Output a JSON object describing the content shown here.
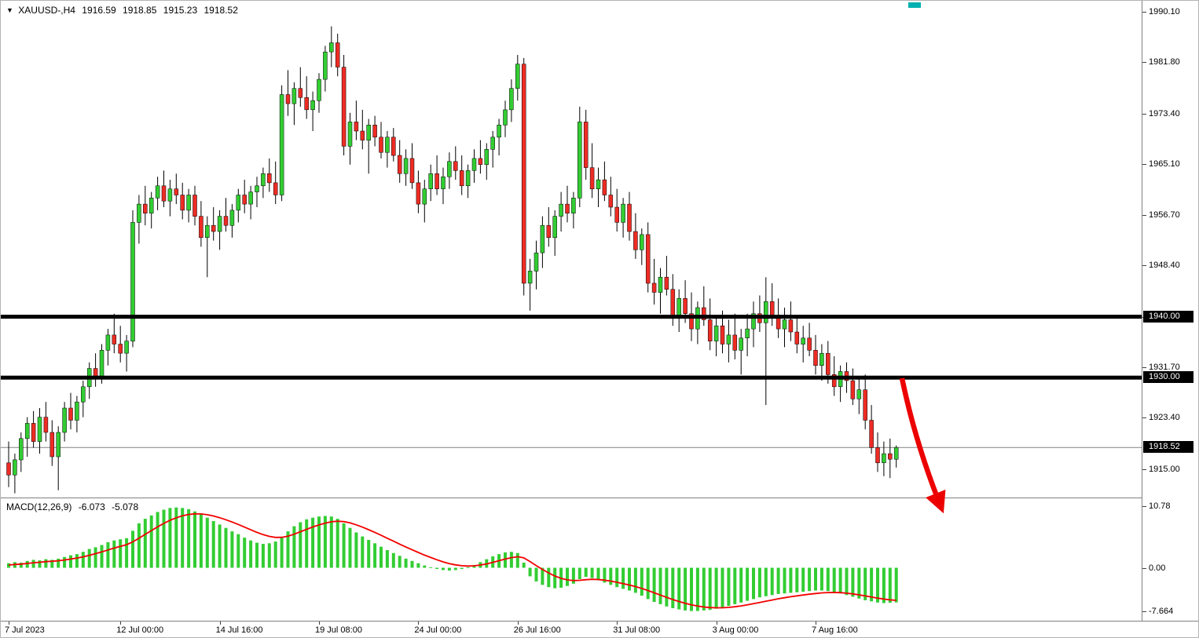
{
  "title_bar": {
    "marker": "▼",
    "symbol": "XAUUSD-,H4",
    "open": "1916.59",
    "high": "1918.85",
    "low": "1915.23",
    "close": "1918.52"
  },
  "indicator_bar": {
    "name": "MACD(12,26,9)",
    "main_value": "-6.073",
    "signal_value": "-5.078"
  },
  "colors": {
    "up": "#32cd32",
    "down": "#ee2c24",
    "wick": "#000000",
    "histogram": "#32cd32",
    "signal": "#f30000",
    "level": "#000000",
    "bid_line": "#808080",
    "frame": "#808080",
    "arrow": "#ec0000",
    "shift_marker": "#00b0b0"
  },
  "annotations": {
    "trend_arrow": {
      "color": "#ec0000",
      "from": [
        1147,
        481
      ],
      "to": [
        1197,
        646
      ]
    }
  },
  "chart_data": [
    {
      "type": "candlestick",
      "symbol": "XAUUSD-",
      "timeframe": "H4",
      "grid": false,
      "ylim": [
        1910.3,
        1991.9
      ],
      "y_ticks": [
        "1990.10",
        "1981.80",
        "1973.40",
        "1965.10",
        "1956.70",
        "1948.40",
        "1940.00",
        "1931.70",
        "1923.40",
        "1915.00"
      ],
      "price_badges": [
        {
          "text": "1940.00",
          "price": 1940.0
        },
        {
          "text": "1930.00",
          "price": 1930.0
        },
        {
          "text": "1918.52",
          "price": 1918.52
        }
      ],
      "levels": [
        {
          "price": 1940.0,
          "thickness": 5
        },
        {
          "price": 1930.0,
          "thickness": 5
        }
      ],
      "current_price": 1918.52,
      "x_ticks": [
        {
          "label": "7 Jul 2023",
          "bar": 0
        },
        {
          "label": "12 Jul 00:00",
          "bar": 18
        },
        {
          "label": "14 Jul 16:00",
          "bar": 34
        },
        {
          "label": "19 Jul 08:00",
          "bar": 50
        },
        {
          "label": "24 Jul 00:00",
          "bar": 66
        },
        {
          "label": "26 Jul 16:00",
          "bar": 82
        },
        {
          "label": "31 Jul 08:00",
          "bar": 98
        },
        {
          "label": "3 Aug 00:00",
          "bar": 114
        },
        {
          "label": "7 Aug 16:00",
          "bar": 130
        }
      ],
      "ohlc": [
        [
          1916,
          1919.5,
          1912,
          1914
        ],
        [
          1914,
          1917.5,
          1911,
          1916.5
        ],
        [
          1916.5,
          1921,
          1914.5,
          1920
        ],
        [
          1920,
          1923.5,
          1917,
          1922.5
        ],
        [
          1922.5,
          1924.5,
          1918.5,
          1919.5
        ],
        [
          1919.5,
          1925,
          1917.5,
          1923.5
        ],
        [
          1923.5,
          1926,
          1919.5,
          1921
        ],
        [
          1921,
          1923,
          1915.5,
          1917
        ],
        [
          1917,
          1922,
          1911.5,
          1921
        ],
        [
          1921,
          1926,
          1919.5,
          1925
        ],
        [
          1925,
          1927.5,
          1921.5,
          1923
        ],
        [
          1923,
          1927,
          1921,
          1926
        ],
        [
          1926,
          1929.5,
          1923.5,
          1928.5
        ],
        [
          1928.5,
          1932.5,
          1926.5,
          1931.5
        ],
        [
          1931.5,
          1934,
          1928.5,
          1930
        ],
        [
          1930,
          1935.5,
          1929,
          1934.5
        ],
        [
          1934.5,
          1938,
          1932,
          1937
        ],
        [
          1937,
          1940.5,
          1934,
          1935.5
        ],
        [
          1935.5,
          1938.5,
          1932.5,
          1934
        ],
        [
          1934,
          1937,
          1931,
          1936
        ],
        [
          1936,
          1957.5,
          1935,
          1955.5
        ],
        [
          1955.5,
          1960,
          1952,
          1958.5
        ],
        [
          1958.5,
          1961.5,
          1955,
          1957
        ],
        [
          1957,
          1960.5,
          1954.5,
          1959.5
        ],
        [
          1959.5,
          1963,
          1957.5,
          1961.5
        ],
        [
          1961.5,
          1964,
          1958,
          1959
        ],
        [
          1959,
          1962.5,
          1956.5,
          1961
        ],
        [
          1961,
          1963.5,
          1958.5,
          1960
        ],
        [
          1960,
          1962,
          1956,
          1957.5
        ],
        [
          1957.5,
          1961,
          1955.5,
          1960
        ],
        [
          1960,
          1961.5,
          1955,
          1956.5
        ],
        [
          1956.5,
          1959,
          1951.5,
          1953
        ],
        [
          1953,
          1956.5,
          1946.5,
          1955
        ],
        [
          1955,
          1958,
          1952.5,
          1954
        ],
        [
          1954,
          1957.5,
          1951,
          1956.5
        ],
        [
          1956.5,
          1959.5,
          1954,
          1955
        ],
        [
          1955,
          1958.5,
          1953,
          1957.5
        ],
        [
          1957.5,
          1961,
          1955.5,
          1960
        ],
        [
          1960,
          1962.5,
          1957,
          1958.5
        ],
        [
          1958.5,
          1961.5,
          1956,
          1960.5
        ],
        [
          1960.5,
          1963,
          1958,
          1961.5
        ],
        [
          1961.5,
          1964.5,
          1959.5,
          1963.5
        ],
        [
          1963.5,
          1966,
          1960.5,
          1962
        ],
        [
          1962,
          1965.5,
          1958.5,
          1960
        ],
        [
          1960,
          1978,
          1959,
          1976.5
        ],
        [
          1976.5,
          1980.5,
          1973,
          1975
        ],
        [
          1975,
          1978.5,
          1971.5,
          1977.5
        ],
        [
          1977.5,
          1981,
          1974.5,
          1976
        ],
        [
          1976,
          1979.5,
          1972.5,
          1974
        ],
        [
          1974,
          1977,
          1970.5,
          1975.5
        ],
        [
          1975.5,
          1980,
          1973.5,
          1979
        ],
        [
          1979,
          1984.5,
          1977,
          1983.5
        ],
        [
          1983.5,
          1987.7,
          1981,
          1985
        ],
        [
          1985,
          1986.5,
          1979.5,
          1981
        ],
        [
          1981,
          1983,
          1966.5,
          1968
        ],
        [
          1968,
          1973.5,
          1965,
          1972
        ],
        [
          1972,
          1975.5,
          1969,
          1970.5
        ],
        [
          1970.5,
          1974,
          1967.5,
          1969
        ],
        [
          1969,
          1972.5,
          1963.5,
          1971.5
        ],
        [
          1971.5,
          1973,
          1968,
          1969.5
        ],
        [
          1969.5,
          1972,
          1966,
          1967
        ],
        [
          1967,
          1970.5,
          1964.5,
          1969.5
        ],
        [
          1969.5,
          1971,
          1965.5,
          1966.5
        ],
        [
          1966.5,
          1969,
          1962,
          1963.5
        ],
        [
          1963.5,
          1967.5,
          1961.5,
          1966
        ],
        [
          1966,
          1968.5,
          1961,
          1962
        ],
        [
          1962,
          1964,
          1957,
          1958.5
        ],
        [
          1958.5,
          1962.5,
          1955.5,
          1961
        ],
        [
          1961,
          1965,
          1959,
          1963.5
        ],
        [
          1963.5,
          1966.5,
          1960,
          1961
        ],
        [
          1961,
          1964.5,
          1958.5,
          1963
        ],
        [
          1963,
          1967,
          1961,
          1965.5
        ],
        [
          1965.5,
          1968,
          1962.5,
          1964
        ],
        [
          1964,
          1966.5,
          1960,
          1961.5
        ],
        [
          1961.5,
          1965,
          1959.5,
          1964
        ],
        [
          1964,
          1967.5,
          1962,
          1966
        ],
        [
          1966,
          1969,
          1963.5,
          1965
        ],
        [
          1965,
          1968.5,
          1962.5,
          1967.5
        ],
        [
          1967.5,
          1970.5,
          1964.5,
          1969.5
        ],
        [
          1969.5,
          1972.5,
          1966.5,
          1971.5
        ],
        [
          1971.5,
          1975.5,
          1969.5,
          1974
        ],
        [
          1974,
          1979,
          1972,
          1977.5
        ],
        [
          1977.5,
          1983,
          1975.5,
          1981.5
        ],
        [
          1981.5,
          1982.5,
          1943.5,
          1945.5
        ],
        [
          1945.5,
          1949.5,
          1941,
          1947.5
        ],
        [
          1947.5,
          1952.5,
          1944.5,
          1950.5
        ],
        [
          1950.5,
          1956.5,
          1948,
          1955
        ],
        [
          1955,
          1958,
          1951.5,
          1953
        ],
        [
          1953,
          1957.5,
          1950,
          1956.5
        ],
        [
          1956.5,
          1960.5,
          1954,
          1958.5
        ],
        [
          1958.5,
          1961.5,
          1955.5,
          1957
        ],
        [
          1957,
          1960.5,
          1954.5,
          1959.5
        ],
        [
          1959.5,
          1974.5,
          1958,
          1972
        ],
        [
          1972,
          1974,
          1962.5,
          1964.5
        ],
        [
          1964.5,
          1968.5,
          1959.5,
          1961
        ],
        [
          1961,
          1964.5,
          1958,
          1962.5
        ],
        [
          1962.5,
          1965.5,
          1959,
          1960
        ],
        [
          1960,
          1963,
          1956.5,
          1958
        ],
        [
          1958,
          1961,
          1954,
          1955.5
        ],
        [
          1955.5,
          1959.5,
          1953,
          1958.5
        ],
        [
          1958.5,
          1960.5,
          1952.5,
          1954
        ],
        [
          1954,
          1957,
          1949.5,
          1951
        ],
        [
          1951,
          1954.5,
          1948.5,
          1953.5
        ],
        [
          1953.5,
          1955.5,
          1944,
          1945.5
        ],
        [
          1945.5,
          1949.5,
          1942,
          1944
        ],
        [
          1944,
          1948,
          1940.5,
          1946.5
        ],
        [
          1946.5,
          1950,
          1943.5,
          1944.5
        ],
        [
          1944.5,
          1947,
          1938.5,
          1940
        ],
        [
          1940,
          1944.5,
          1937.5,
          1943
        ],
        [
          1943,
          1946,
          1939,
          1940.5
        ],
        [
          1940.5,
          1944,
          1936,
          1938
        ],
        [
          1938,
          1942.5,
          1935.5,
          1941.5
        ],
        [
          1941.5,
          1945,
          1938.5,
          1939.5
        ],
        [
          1939.5,
          1943,
          1934.5,
          1936
        ],
        [
          1936,
          1940,
          1933.5,
          1938.5
        ],
        [
          1938.5,
          1941,
          1934,
          1935.5
        ],
        [
          1935.5,
          1939.5,
          1932.5,
          1937
        ],
        [
          1937,
          1940.5,
          1933,
          1934.5
        ],
        [
          1934.5,
          1938,
          1930.5,
          1936.5
        ],
        [
          1936.5,
          1940.5,
          1933.5,
          1938
        ],
        [
          1938,
          1942.5,
          1935,
          1940.5
        ],
        [
          1940.5,
          1943.5,
          1937.5,
          1939
        ],
        [
          1939,
          1946.5,
          1925.5,
          1942.5
        ],
        [
          1942.5,
          1945.5,
          1938.5,
          1940
        ],
        [
          1940,
          1943,
          1936.5,
          1938
        ],
        [
          1938,
          1941.5,
          1935,
          1939.5
        ],
        [
          1939.5,
          1942.5,
          1936,
          1937.5
        ],
        [
          1937.5,
          1940,
          1934,
          1935.5
        ],
        [
          1935.5,
          1938.5,
          1932.5,
          1936.5
        ],
        [
          1936.5,
          1939,
          1933.5,
          1934.5
        ],
        [
          1934.5,
          1937,
          1930.5,
          1932
        ],
        [
          1932,
          1935.5,
          1929.5,
          1934
        ],
        [
          1934,
          1936,
          1929,
          1930.5
        ],
        [
          1930.5,
          1933.5,
          1927,
          1928.5
        ],
        [
          1928.5,
          1932,
          1926,
          1931
        ],
        [
          1931,
          1932.5,
          1927.5,
          1929.5
        ],
        [
          1929.5,
          1931.5,
          1925.5,
          1926.5
        ],
        [
          1926.5,
          1930,
          1924,
          1928
        ],
        [
          1928,
          1930.5,
          1921.5,
          1923
        ],
        [
          1923,
          1925.5,
          1917.5,
          1918.5
        ],
        [
          1918.5,
          1921,
          1914.5,
          1916
        ],
        [
          1916,
          1919.5,
          1913.8,
          1917.5
        ],
        [
          1917.5,
          1920,
          1913.5,
          1916.59
        ],
        [
          1916.59,
          1918.85,
          1915.23,
          1918.52
        ]
      ]
    },
    {
      "type": "bar",
      "name": "MACD(12,26,9)",
      "ylim": [
        -9.3,
        12.2
      ],
      "y_ticks": [
        {
          "text": "10.78",
          "value": 10.78
        },
        {
          "text": "0.00",
          "value": 0
        },
        {
          "text": "-7.664",
          "value": -7.664
        }
      ],
      "signal_line": {
        "ema_period": 9
      },
      "last_values": {
        "main": -6.073,
        "signal": -5.078
      },
      "values": [
        0.8,
        1.0,
        0.9,
        1.2,
        1.4,
        1.3,
        1.5,
        1.4,
        1.6,
        1.9,
        2.2,
        2.4,
        2.8,
        3.3,
        3.6,
        4.0,
        4.5,
        4.8,
        5.0,
        5.2,
        6.5,
        7.8,
        8.6,
        9.2,
        9.8,
        10.2,
        10.5,
        10.6,
        10.5,
        10.3,
        9.9,
        9.4,
        8.8,
        8.2,
        7.6,
        7.0,
        6.4,
        5.9,
        5.3,
        4.8,
        4.4,
        4.2,
        4.3,
        4.6,
        5.4,
        6.4,
        7.3,
        8.0,
        8.5,
        8.8,
        9.0,
        9.1,
        9.0,
        8.6,
        7.8,
        7.0,
        6.2,
        5.5,
        4.9,
        4.3,
        3.7,
        3.1,
        2.6,
        2.1,
        1.6,
        1.2,
        0.8,
        0.4,
        0.1,
        -0.2,
        -0.4,
        -0.5,
        -0.4,
        -0.2,
        0.1,
        0.5,
        1.0,
        1.5,
        2.0,
        2.4,
        2.7,
        2.8,
        2.6,
        0.9,
        -1.5,
        -2.4,
        -3.0,
        -3.4,
        -3.6,
        -3.5,
        -3.2,
        -2.8,
        -2.0,
        -1.6,
        -1.8,
        -2.2,
        -2.6,
        -3.0,
        -3.4,
        -3.7,
        -4.0,
        -4.4,
        -4.9,
        -5.5,
        -6.0,
        -6.4,
        -6.8,
        -7.1,
        -7.3,
        -7.5,
        -7.6,
        -7.6,
        -7.5,
        -7.4,
        -7.2,
        -7.0,
        -6.7,
        -6.4,
        -6.1,
        -5.8,
        -5.5,
        -5.2,
        -5.0,
        -4.8,
        -4.6,
        -4.5,
        -4.4,
        -4.3,
        -4.2,
        -4.1,
        -4.0,
        -4.0,
        -4.1,
        -4.3,
        -4.5,
        -4.8,
        -5.1,
        -5.4,
        -5.7,
        -5.9,
        -6.1,
        -6.2,
        -6.15,
        -6.073
      ]
    }
  ]
}
